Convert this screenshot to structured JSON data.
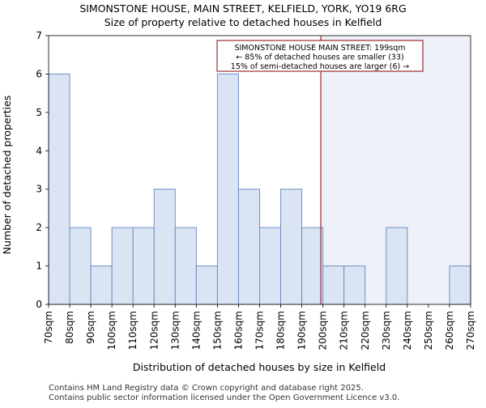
{
  "chart_data": {
    "type": "bar",
    "title": "SIMONSTONE HOUSE, MAIN STREET, KELFIELD, YORK, YO19 6RG",
    "subtitle": "Size of property relative to detached houses in Kelfield",
    "xlabel": "Distribution of detached houses by size in Kelfield",
    "ylabel": "Number of detached properties",
    "bin_edges": [
      70,
      80,
      90,
      100,
      110,
      120,
      130,
      140,
      150,
      160,
      170,
      180,
      190,
      200,
      210,
      220,
      230,
      240,
      250,
      260,
      270
    ],
    "tick_labels": [
      "70sqm",
      "80sqm",
      "90sqm",
      "100sqm",
      "110sqm",
      "120sqm",
      "130sqm",
      "140sqm",
      "150sqm",
      "160sqm",
      "170sqm",
      "180sqm",
      "190sqm",
      "200sqm",
      "210sqm",
      "220sqm",
      "230sqm",
      "240sqm",
      "250sqm",
      "260sqm",
      "270sqm"
    ],
    "values": [
      6,
      2,
      1,
      2,
      2,
      3,
      2,
      1,
      6,
      3,
      2,
      3,
      2,
      1,
      1,
      0,
      2,
      0,
      0,
      1
    ],
    "ylim": [
      0,
      7
    ],
    "yticks": [
      0,
      1,
      2,
      3,
      4,
      5,
      6,
      7
    ],
    "marker_value": 199,
    "annotation": [
      "SIMONSTONE HOUSE MAIN STREET: 199sqm",
      "← 85% of detached houses are smaller (33)",
      "15% of semi-detached houses are larger (6) →"
    ],
    "colors": {
      "bar_fill": "#dae4f3",
      "bar_stroke": "#6f8fc6",
      "marker": "#8b0000",
      "shade": "#eef1fa",
      "annotation_border": "#8b0000"
    }
  },
  "footer": {
    "line1": "Contains HM Land Registry data © Crown copyright and database right 2025.",
    "line2": "Contains public sector information licensed under the Open Government Licence v3.0."
  }
}
